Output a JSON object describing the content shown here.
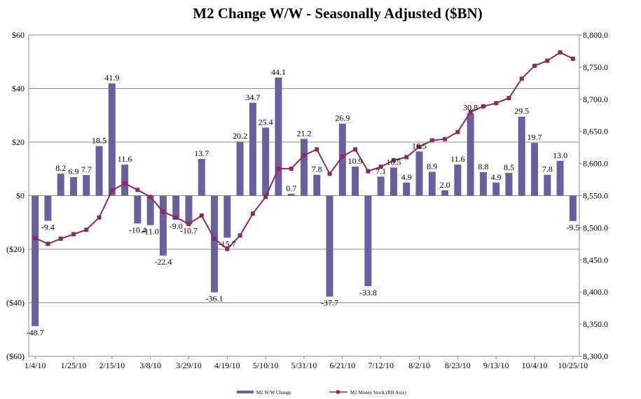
{
  "colors": {
    "bar": "#6a5f9f",
    "line": "#8b2b5c",
    "grid": "#8a8a8a",
    "axis": "#8a8a8a"
  },
  "chart_data": {
    "type": "bar+line",
    "title": "M2 Change W/W - Seasonally Adjusted ($BN)",
    "xlabel": "",
    "ylabel": "",
    "y_left": {
      "min": -60,
      "max": 60,
      "step": 20,
      "tick_labels": [
        "$60",
        "$40",
        "$20",
        "$0",
        "($20)",
        "($40)",
        "($60)"
      ]
    },
    "y_right": {
      "min": 8300,
      "max": 8800,
      "step": 50,
      "tick_labels": [
        "8,800.0",
        "8,750.0",
        "8,700.0",
        "8,650.0",
        "8,600.0",
        "8,550.0",
        "8,500.0",
        "8,450.0",
        "8,400.0",
        "8,350.0",
        "8,300.0"
      ]
    },
    "x_tick_labels": [
      "1/4/10",
      "1/25/10",
      "2/15/10",
      "3/8/10",
      "3/29/10",
      "4/19/10",
      "5/10/10",
      "5/31/10",
      "6/21/10",
      "7/12/10",
      "8/2/10",
      "8/23/10",
      "9/13/10",
      "10/4/10",
      "10/25/10"
    ],
    "x_tick_every": 3,
    "series": [
      {
        "name": "M2 W/W Change",
        "axis": "left",
        "kind": "bar",
        "values": [
          -48.7,
          -9.4,
          8.2,
          6.9,
          7.7,
          18.5,
          41.9,
          11.6,
          -10.4,
          -11.0,
          -22.4,
          -9.0,
          -10.7,
          13.7,
          -36.1,
          -15.7,
          20.2,
          34.7,
          25.4,
          44.1,
          0.7,
          21.2,
          7.8,
          -37.7,
          26.9,
          10.9,
          -33.8,
          7.1,
          10.5,
          4.9,
          16.5,
          8.9,
          2.0,
          11.6,
          30.8,
          8.8,
          4.9,
          8.5,
          29.5,
          19.7,
          7.8,
          13.0,
          -9.5
        ],
        "labels": [
          "-48.7",
          "-9.4",
          "8.2",
          "6.9",
          "7.7",
          "18.5",
          "41.9",
          "11.6",
          "-10.4",
          "-11.0",
          "-22.4",
          "-9.0",
          "-10.7",
          "13.7",
          "-36.1",
          "-15.7",
          "20.2",
          "34.7",
          "25.4",
          "44.1",
          "0.7",
          "21.2",
          "7.8",
          "-37.7",
          "26.9",
          "10.9",
          "-33.8",
          "7.1",
          "10.5",
          "4.9",
          "16.5",
          "8.9",
          "2.0",
          "11.6",
          "30.8",
          "8.8",
          "4.9",
          "8.5",
          "29.5",
          "19.7",
          "7.8",
          "13.0",
          "-9.5"
        ]
      },
      {
        "name": "M2 Money Stock (RH Axis)",
        "axis": "right",
        "kind": "line",
        "values": [
          8484,
          8475,
          8483,
          8490,
          8497,
          8516,
          8558,
          8569,
          8559,
          8548,
          8525,
          8516,
          8506,
          8519,
          8483,
          8467,
          8488,
          8522,
          8548,
          8592,
          8592,
          8613,
          8622,
          8584,
          8611,
          8622,
          8588,
          8595,
          8605,
          8610,
          8626,
          8636,
          8638,
          8649,
          8680,
          8689,
          8694,
          8702,
          8732,
          8752,
          8760,
          8773,
          8763
        ]
      }
    ],
    "legend_position": "bottom"
  }
}
